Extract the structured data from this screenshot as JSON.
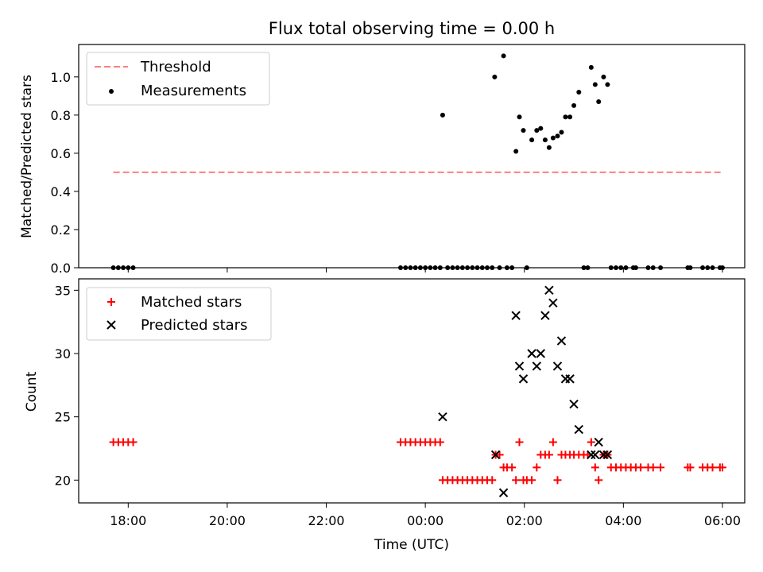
{
  "chart_data": [
    {
      "type": "scatter",
      "title": "Flux total observing time = 0.00 h",
      "ylabel": "Matched/Predicted stars",
      "xlabel": "",
      "xlim": [
        -7.0,
        6.45
      ],
      "ylim": [
        0,
        1.17
      ],
      "yticks": [
        0.0,
        0.2,
        0.4,
        0.6,
        0.8,
        1.0
      ],
      "ytick_labels": [
        "0.0",
        "0.2",
        "0.4",
        "0.6",
        "0.8",
        "1.0"
      ],
      "legend_position": "top-left",
      "threshold": {
        "name": "Threshold",
        "color": "#ff7f7f",
        "x": [
          -6.3,
          6.0
        ],
        "y": 0.5
      },
      "measurements": {
        "name": "Measurements",
        "color": "#000000",
        "points": [
          [
            -6.3,
            0
          ],
          [
            -6.2,
            0
          ],
          [
            -6.1,
            0
          ],
          [
            -6.0,
            0
          ],
          [
            -5.9,
            0
          ],
          [
            -0.5,
            0
          ],
          [
            -0.4,
            0
          ],
          [
            -0.3,
            0
          ],
          [
            -0.2,
            0
          ],
          [
            -0.1,
            0
          ],
          [
            0.0,
            0
          ],
          [
            0.1,
            0
          ],
          [
            0.2,
            0
          ],
          [
            0.3,
            0
          ],
          [
            0.35,
            0.8
          ],
          [
            0.45,
            0
          ],
          [
            0.55,
            0
          ],
          [
            0.65,
            0
          ],
          [
            0.75,
            0
          ],
          [
            0.85,
            0
          ],
          [
            0.95,
            0
          ],
          [
            1.05,
            0
          ],
          [
            1.15,
            0
          ],
          [
            1.25,
            0
          ],
          [
            1.35,
            0
          ],
          [
            1.4,
            1.0
          ],
          [
            1.5,
            0
          ],
          [
            1.58,
            1.11
          ],
          [
            1.65,
            0
          ],
          [
            1.75,
            0
          ],
          [
            1.83,
            0.61
          ],
          [
            1.9,
            0.79
          ],
          [
            1.98,
            0.72
          ],
          [
            2.05,
            0
          ],
          [
            2.15,
            0.67
          ],
          [
            2.25,
            0.72
          ],
          [
            2.33,
            0.73
          ],
          [
            2.42,
            0.67
          ],
          [
            2.5,
            0.63
          ],
          [
            2.58,
            0.68
          ],
          [
            2.67,
            0.69
          ],
          [
            2.75,
            0.71
          ],
          [
            2.83,
            0.79
          ],
          [
            2.92,
            0.79
          ],
          [
            3.0,
            0.85
          ],
          [
            3.1,
            0.92
          ],
          [
            3.2,
            0
          ],
          [
            3.28,
            0
          ],
          [
            3.35,
            1.05
          ],
          [
            3.43,
            0.96
          ],
          [
            3.5,
            0.87
          ],
          [
            3.6,
            1.0
          ],
          [
            3.68,
            0.96
          ],
          [
            3.75,
            0
          ],
          [
            3.85,
            0
          ],
          [
            3.95,
            0
          ],
          [
            4.05,
            0
          ],
          [
            4.2,
            0
          ],
          [
            4.25,
            0
          ],
          [
            4.5,
            0
          ],
          [
            4.6,
            0
          ],
          [
            4.75,
            0
          ],
          [
            5.3,
            0
          ],
          [
            5.35,
            0
          ],
          [
            5.6,
            0
          ],
          [
            5.7,
            0
          ],
          [
            5.8,
            0
          ],
          [
            5.95,
            0
          ],
          [
            6.0,
            0
          ]
        ]
      }
    },
    {
      "type": "scatter",
      "title": "",
      "ylabel": "Count",
      "xlabel": "Time (UTC)",
      "xlim": [
        -7.0,
        6.45
      ],
      "ylim": [
        18.2,
        35.9
      ],
      "yticks": [
        20,
        25,
        30,
        35
      ],
      "ytick_labels": [
        "20",
        "25",
        "30",
        "35"
      ],
      "xticks": [
        -6,
        -4,
        -2,
        0,
        2,
        4,
        6
      ],
      "xtick_labels": [
        "18:00",
        "20:00",
        "22:00",
        "00:00",
        "02:00",
        "04:00",
        "06:00"
      ],
      "legend_position": "top-left",
      "matched": {
        "name": "Matched stars",
        "color": "#ff0000",
        "points": [
          [
            -6.3,
            23
          ],
          [
            -6.2,
            23
          ],
          [
            -6.1,
            23
          ],
          [
            -6.0,
            23
          ],
          [
            -5.9,
            23
          ],
          [
            -0.5,
            23
          ],
          [
            -0.4,
            23
          ],
          [
            -0.3,
            23
          ],
          [
            -0.2,
            23
          ],
          [
            -0.1,
            23
          ],
          [
            0.0,
            23
          ],
          [
            0.1,
            23
          ],
          [
            0.2,
            23
          ],
          [
            0.3,
            23
          ],
          [
            0.35,
            20
          ],
          [
            0.45,
            20
          ],
          [
            0.55,
            20
          ],
          [
            0.65,
            20
          ],
          [
            0.75,
            20
          ],
          [
            0.85,
            20
          ],
          [
            0.95,
            20
          ],
          [
            1.05,
            20
          ],
          [
            1.15,
            20
          ],
          [
            1.25,
            20
          ],
          [
            1.35,
            20
          ],
          [
            1.42,
            22
          ],
          [
            1.5,
            22
          ],
          [
            1.58,
            21
          ],
          [
            1.65,
            21
          ],
          [
            1.75,
            21
          ],
          [
            1.83,
            20
          ],
          [
            1.9,
            23
          ],
          [
            1.98,
            20
          ],
          [
            2.05,
            20
          ],
          [
            2.15,
            20
          ],
          [
            2.25,
            21
          ],
          [
            2.33,
            22
          ],
          [
            2.42,
            22
          ],
          [
            2.5,
            22
          ],
          [
            2.58,
            23
          ],
          [
            2.67,
            20
          ],
          [
            2.75,
            22
          ],
          [
            2.83,
            22
          ],
          [
            2.92,
            22
          ],
          [
            3.0,
            22
          ],
          [
            3.1,
            22
          ],
          [
            3.2,
            22
          ],
          [
            3.28,
            22
          ],
          [
            3.35,
            23
          ],
          [
            3.43,
            21
          ],
          [
            3.5,
            20
          ],
          [
            3.6,
            22
          ],
          [
            3.68,
            22
          ],
          [
            3.75,
            21
          ],
          [
            3.85,
            21
          ],
          [
            3.95,
            21
          ],
          [
            4.05,
            21
          ],
          [
            4.15,
            21
          ],
          [
            4.25,
            21
          ],
          [
            4.35,
            21
          ],
          [
            4.5,
            21
          ],
          [
            4.6,
            21
          ],
          [
            4.75,
            21
          ],
          [
            5.3,
            21
          ],
          [
            5.35,
            21
          ],
          [
            5.6,
            21
          ],
          [
            5.7,
            21
          ],
          [
            5.8,
            21
          ],
          [
            5.95,
            21
          ],
          [
            6.0,
            21
          ]
        ]
      },
      "predicted": {
        "name": "Predicted stars",
        "color": "#000000",
        "points": [
          [
            0.35,
            25
          ],
          [
            1.42,
            22
          ],
          [
            1.58,
            19
          ],
          [
            1.83,
            33
          ],
          [
            1.9,
            29
          ],
          [
            1.98,
            28
          ],
          [
            2.15,
            30
          ],
          [
            2.25,
            29
          ],
          [
            2.33,
            30
          ],
          [
            2.42,
            33
          ],
          [
            2.5,
            35
          ],
          [
            2.58,
            34
          ],
          [
            2.67,
            29
          ],
          [
            2.75,
            31
          ],
          [
            2.83,
            28
          ],
          [
            2.92,
            28
          ],
          [
            3.0,
            26
          ],
          [
            3.1,
            24
          ],
          [
            3.35,
            22
          ],
          [
            3.43,
            22
          ],
          [
            3.5,
            23
          ],
          [
            3.6,
            22
          ],
          [
            3.68,
            22
          ]
        ]
      }
    }
  ]
}
